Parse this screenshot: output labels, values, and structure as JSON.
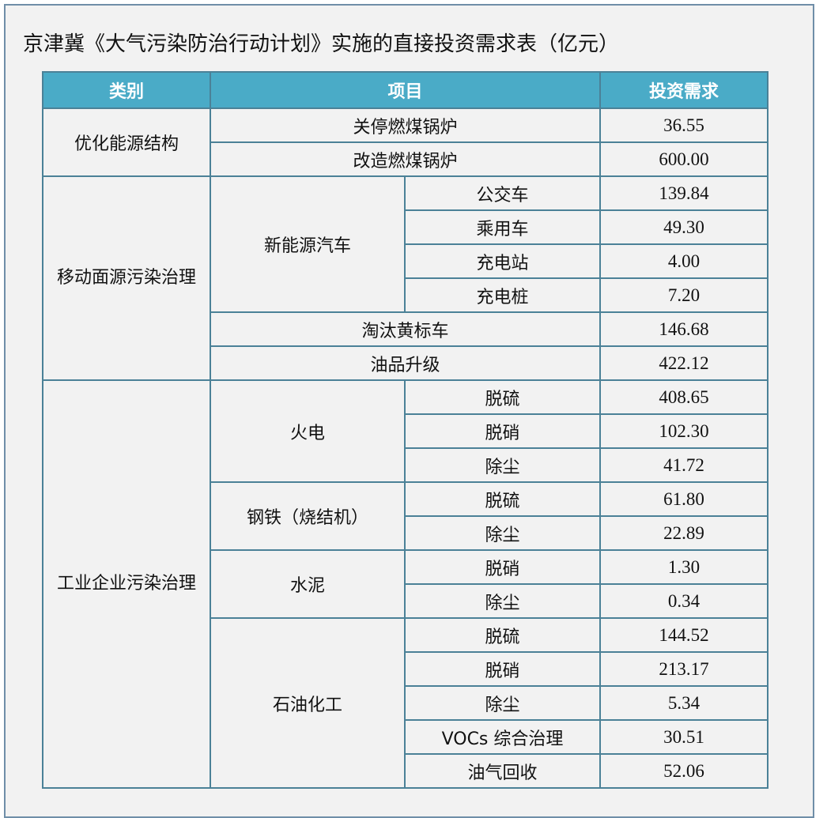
{
  "title": "京津冀《大气污染防治行动计划》实施的直接投资需求表（亿元）",
  "header": {
    "category": "类别",
    "item": "项目",
    "investment": "投资需求"
  },
  "colors": {
    "header_bg": "#4aabc7",
    "border": "#4b8197",
    "background": "#f2f2f2"
  },
  "groups": {
    "g1": {
      "name": "优化能源结构",
      "rows": [
        {
          "item": "关停燃煤锅炉",
          "value": "36.55"
        },
        {
          "item": "改造燃煤锅炉",
          "value": "600.00"
        }
      ]
    },
    "g2": {
      "name": "移动面源污染治理",
      "sub1": {
        "name": "新能源汽车",
        "rows": [
          {
            "item": "公交车",
            "value": "139.84"
          },
          {
            "item": "乘用车",
            "value": "49.30"
          },
          {
            "item": "充电站",
            "value": "4.00"
          },
          {
            "item": "充电桩",
            "value": "7.20"
          }
        ]
      },
      "rows": [
        {
          "item": "淘汰黄标车",
          "value": "146.68"
        },
        {
          "item": "油品升级",
          "value": "422.12"
        }
      ]
    },
    "g3": {
      "name": "工业企业污染治理",
      "s1": {
        "name": "火电",
        "rows": [
          {
            "item": "脱硫",
            "value": "408.65"
          },
          {
            "item": "脱硝",
            "value": "102.30"
          },
          {
            "item": "除尘",
            "value": "41.72"
          }
        ]
      },
      "s2": {
        "name": "钢铁（烧结机）",
        "rows": [
          {
            "item": "脱硫",
            "value": "61.80"
          },
          {
            "item": "除尘",
            "value": "22.89"
          }
        ]
      },
      "s3": {
        "name": "水泥",
        "rows": [
          {
            "item": "脱硝",
            "value": "1.30"
          },
          {
            "item": "除尘",
            "value": "0.34"
          }
        ]
      },
      "s4": {
        "name": "石油化工",
        "rows": [
          {
            "item": "脱硫",
            "value": "144.52"
          },
          {
            "item": "脱硝",
            "value": "213.17"
          },
          {
            "item": "除尘",
            "value": "5.34"
          },
          {
            "item": "VOCs 综合治理",
            "value": "30.51"
          },
          {
            "item": "油气回收",
            "value": "52.06"
          }
        ]
      }
    }
  }
}
